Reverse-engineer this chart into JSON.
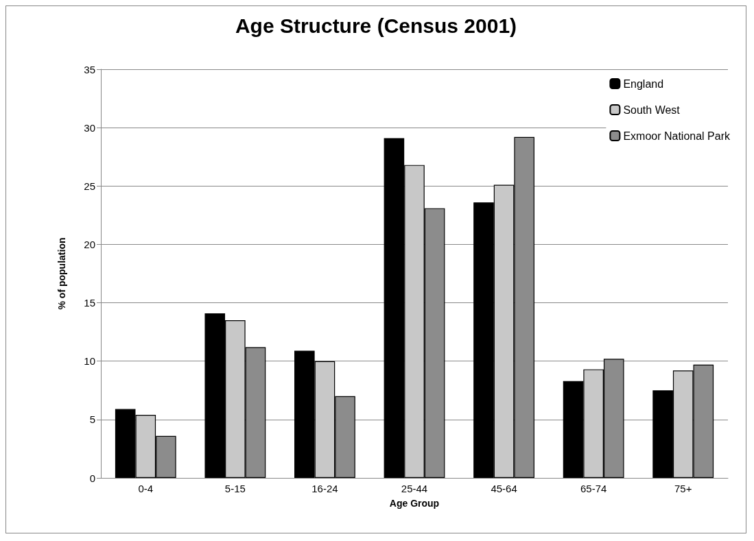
{
  "chart_data": {
    "type": "bar",
    "title": "Age Structure (Census 2001)",
    "xlabel": "Age Group",
    "ylabel": "% of population",
    "categories": [
      "0-4",
      "5-15",
      "16-24",
      "25-44",
      "45-64",
      "65-74",
      "75+"
    ],
    "series": [
      {
        "name": "England",
        "color": "#000000",
        "values": [
          5.9,
          14.1,
          10.9,
          29.1,
          23.6,
          8.3,
          7.5
        ]
      },
      {
        "name": "South West",
        "color": "#c8c8c8",
        "values": [
          5.4,
          13.5,
          10.0,
          26.8,
          25.1,
          9.3,
          9.2
        ]
      },
      {
        "name": "Exmoor National Park",
        "color": "#8c8c8c",
        "values": [
          3.6,
          11.2,
          7.0,
          23.1,
          29.2,
          10.2,
          9.7
        ]
      }
    ],
    "ylim": [
      0,
      35
    ],
    "yticks": [
      0,
      5,
      10,
      15,
      20,
      25,
      30,
      35
    ],
    "grid": "y",
    "legend": "top right"
  }
}
